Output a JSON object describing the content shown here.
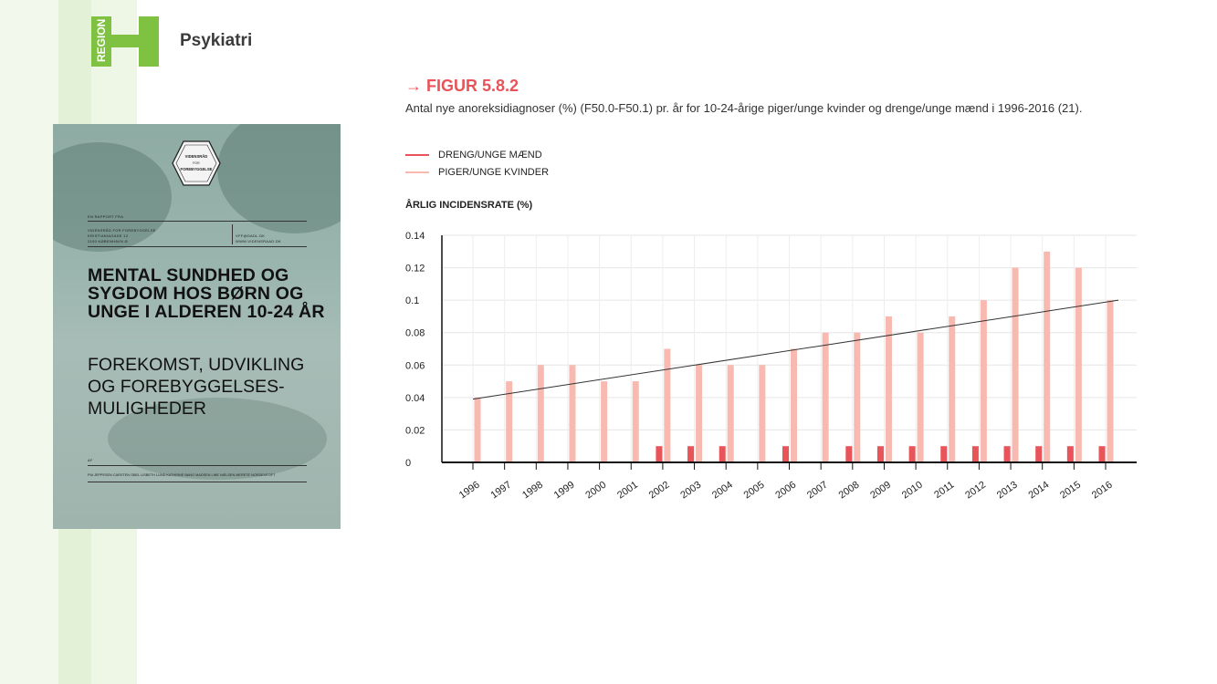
{
  "header": {
    "brand": "Psykiatri",
    "logo_text": "REGION",
    "logo_color": "#7fc241"
  },
  "cover": {
    "badge_line1": "VIDENSRÅD",
    "badge_line2": "FOR",
    "badge_line3": "FOREBYGGELSE",
    "top_text": "EN RAPPORT FRA",
    "publisher_line1": "VIDENSRÅD FOR FOREBYGGELSE",
    "publisher_line2": "KRISTIANIAGADE 12",
    "publisher_line3": "2100 KØBENHAVN Ø",
    "contact_line1": "VFF@DADL.DK",
    "contact_line2": "WWW.VIDENSRAAD.DK",
    "title": "MENTAL SUNDHED OG SYGDOM HOS BØRN OG UNGE I ALDEREN 10-24 ÅR",
    "subtitle": "FOREKOMST, UDVIKLING OG FOREBYGGELSES-MULIGHEDER",
    "authors_label": "AF",
    "authors": "PIA JEPPESEN    CARSTEN OBEL    LISBETH LUND    KATHRINE BANG MADSEN    LINE NIELSEN    MERETE NORDENTOFT"
  },
  "figure": {
    "label": "→ FIGUR 5.8.2",
    "caption": "Antal nye anoreksidiagnoser (%) (F50.0-F50.1) pr. år for 10-24-årige piger/unge kvinder og drenge/unge mænd i 1996-2016 (21).",
    "legend_boys": "DRENG/UNGE MÆND",
    "legend_girls": "PIGER/UNGE KVINDER",
    "ylabel": "ÅRLIG INCIDENSRATE (%)"
  },
  "chart_data": {
    "type": "bar",
    "categories": [
      "1996",
      "1997",
      "1998",
      "1999",
      "2000",
      "2001",
      "2002",
      "2003",
      "2004",
      "2005",
      "2006",
      "2007",
      "2008",
      "2009",
      "2010",
      "2011",
      "2012",
      "2013",
      "2014",
      "2015",
      "2016"
    ],
    "series": [
      {
        "name": "DRENG/UNGE MÆND",
        "color": "#e8545a",
        "values": [
          0,
          0,
          0,
          0,
          0,
          0,
          0.01,
          0.01,
          0.01,
          0,
          0.01,
          0,
          0.01,
          0.01,
          0.01,
          0.01,
          0.01,
          0.01,
          0.01,
          0.01,
          0.01
        ]
      },
      {
        "name": "PIGER/UNGE KVINDER",
        "color": "#f7b9b0",
        "values": [
          0.04,
          0.05,
          0.06,
          0.06,
          0.05,
          0.05,
          0.07,
          0.06,
          0.06,
          0.06,
          0.07,
          0.08,
          0.08,
          0.09,
          0.08,
          0.09,
          0.1,
          0.12,
          0.13,
          0.12,
          0.1
        ]
      }
    ],
    "trendline": {
      "start": 0.039,
      "end": 0.1,
      "color": "#333333"
    },
    "ylim": [
      0,
      0.14
    ],
    "yticks": [
      "0",
      "0.02",
      "0.04",
      "0.06",
      "0.08",
      "0.1",
      "0.12",
      "0.14"
    ],
    "ytick_values": [
      0,
      0.02,
      0.04,
      0.06,
      0.08,
      0.1,
      0.12,
      0.14
    ],
    "ylabel": "ÅRLIG INCIDENSRATE (%)",
    "grid": true,
    "legend_position": "top-left"
  }
}
